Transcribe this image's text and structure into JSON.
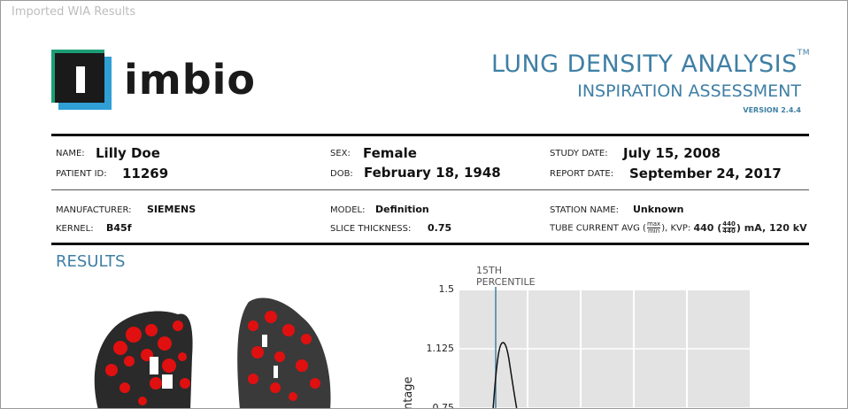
{
  "window": {
    "title": "Imported WIA Results"
  },
  "logo": {
    "text": "imbio",
    "icon": "imbio-logo-icon"
  },
  "report": {
    "title": "LUNG DENSITY ANALYSIS",
    "trademark": "TM",
    "subtitle": "INSPIRATION ASSESSMENT",
    "version": "VERSION 2.4.4"
  },
  "patient": {
    "name_label": "NAME:",
    "name": "Lilly Doe",
    "id_label": "PATIENT ID:",
    "id": "11269",
    "sex_label": "SEX:",
    "sex": "Female",
    "dob_label": "DOB:",
    "dob": "February 18, 1948",
    "study_date_label": "STUDY DATE:",
    "study_date": "July 15, 2008",
    "report_date_label": "REPORT DATE:",
    "report_date": "September 24, 2017"
  },
  "scanner": {
    "manufacturer_label": "MANUFACTURER:",
    "manufacturer": "SIEMENS",
    "kernel_label": "KERNEL:",
    "kernel": "B45f",
    "model_label": "MODEL:",
    "model": "Definition",
    "slice_label": "SLICE THICKNESS:",
    "slice": "0.75",
    "station_label": "STATION NAME:",
    "station": "Unknown",
    "tube_label_a": "TUBE CURRENT AVG (",
    "tube_frac_top": "max",
    "tube_frac_bottom": "min",
    "tube_label_b": "), KVP:",
    "tube_value_a": "440 (",
    "tube_val_top": "440",
    "tube_val_bottom": "440",
    "tube_value_b": ") mA, 120 kV"
  },
  "results": {
    "heading": "RESULTS"
  },
  "chart_data": {
    "type": "line",
    "annotation": "15TH PERCENTILE",
    "annotation_line1": "15TH",
    "annotation_line2": "PERCENTILE",
    "ylabel": "ntage",
    "yticks": [
      "1.5",
      "1.125",
      "0.75"
    ],
    "ylim_visible": [
      0.75,
      1.5
    ],
    "series": [
      {
        "values_note": "density histogram peak ~1.3"
      }
    ],
    "colors": {
      "background": "#e3e3e3",
      "marker": "#3f7fa5",
      "curve": "#111111"
    }
  }
}
